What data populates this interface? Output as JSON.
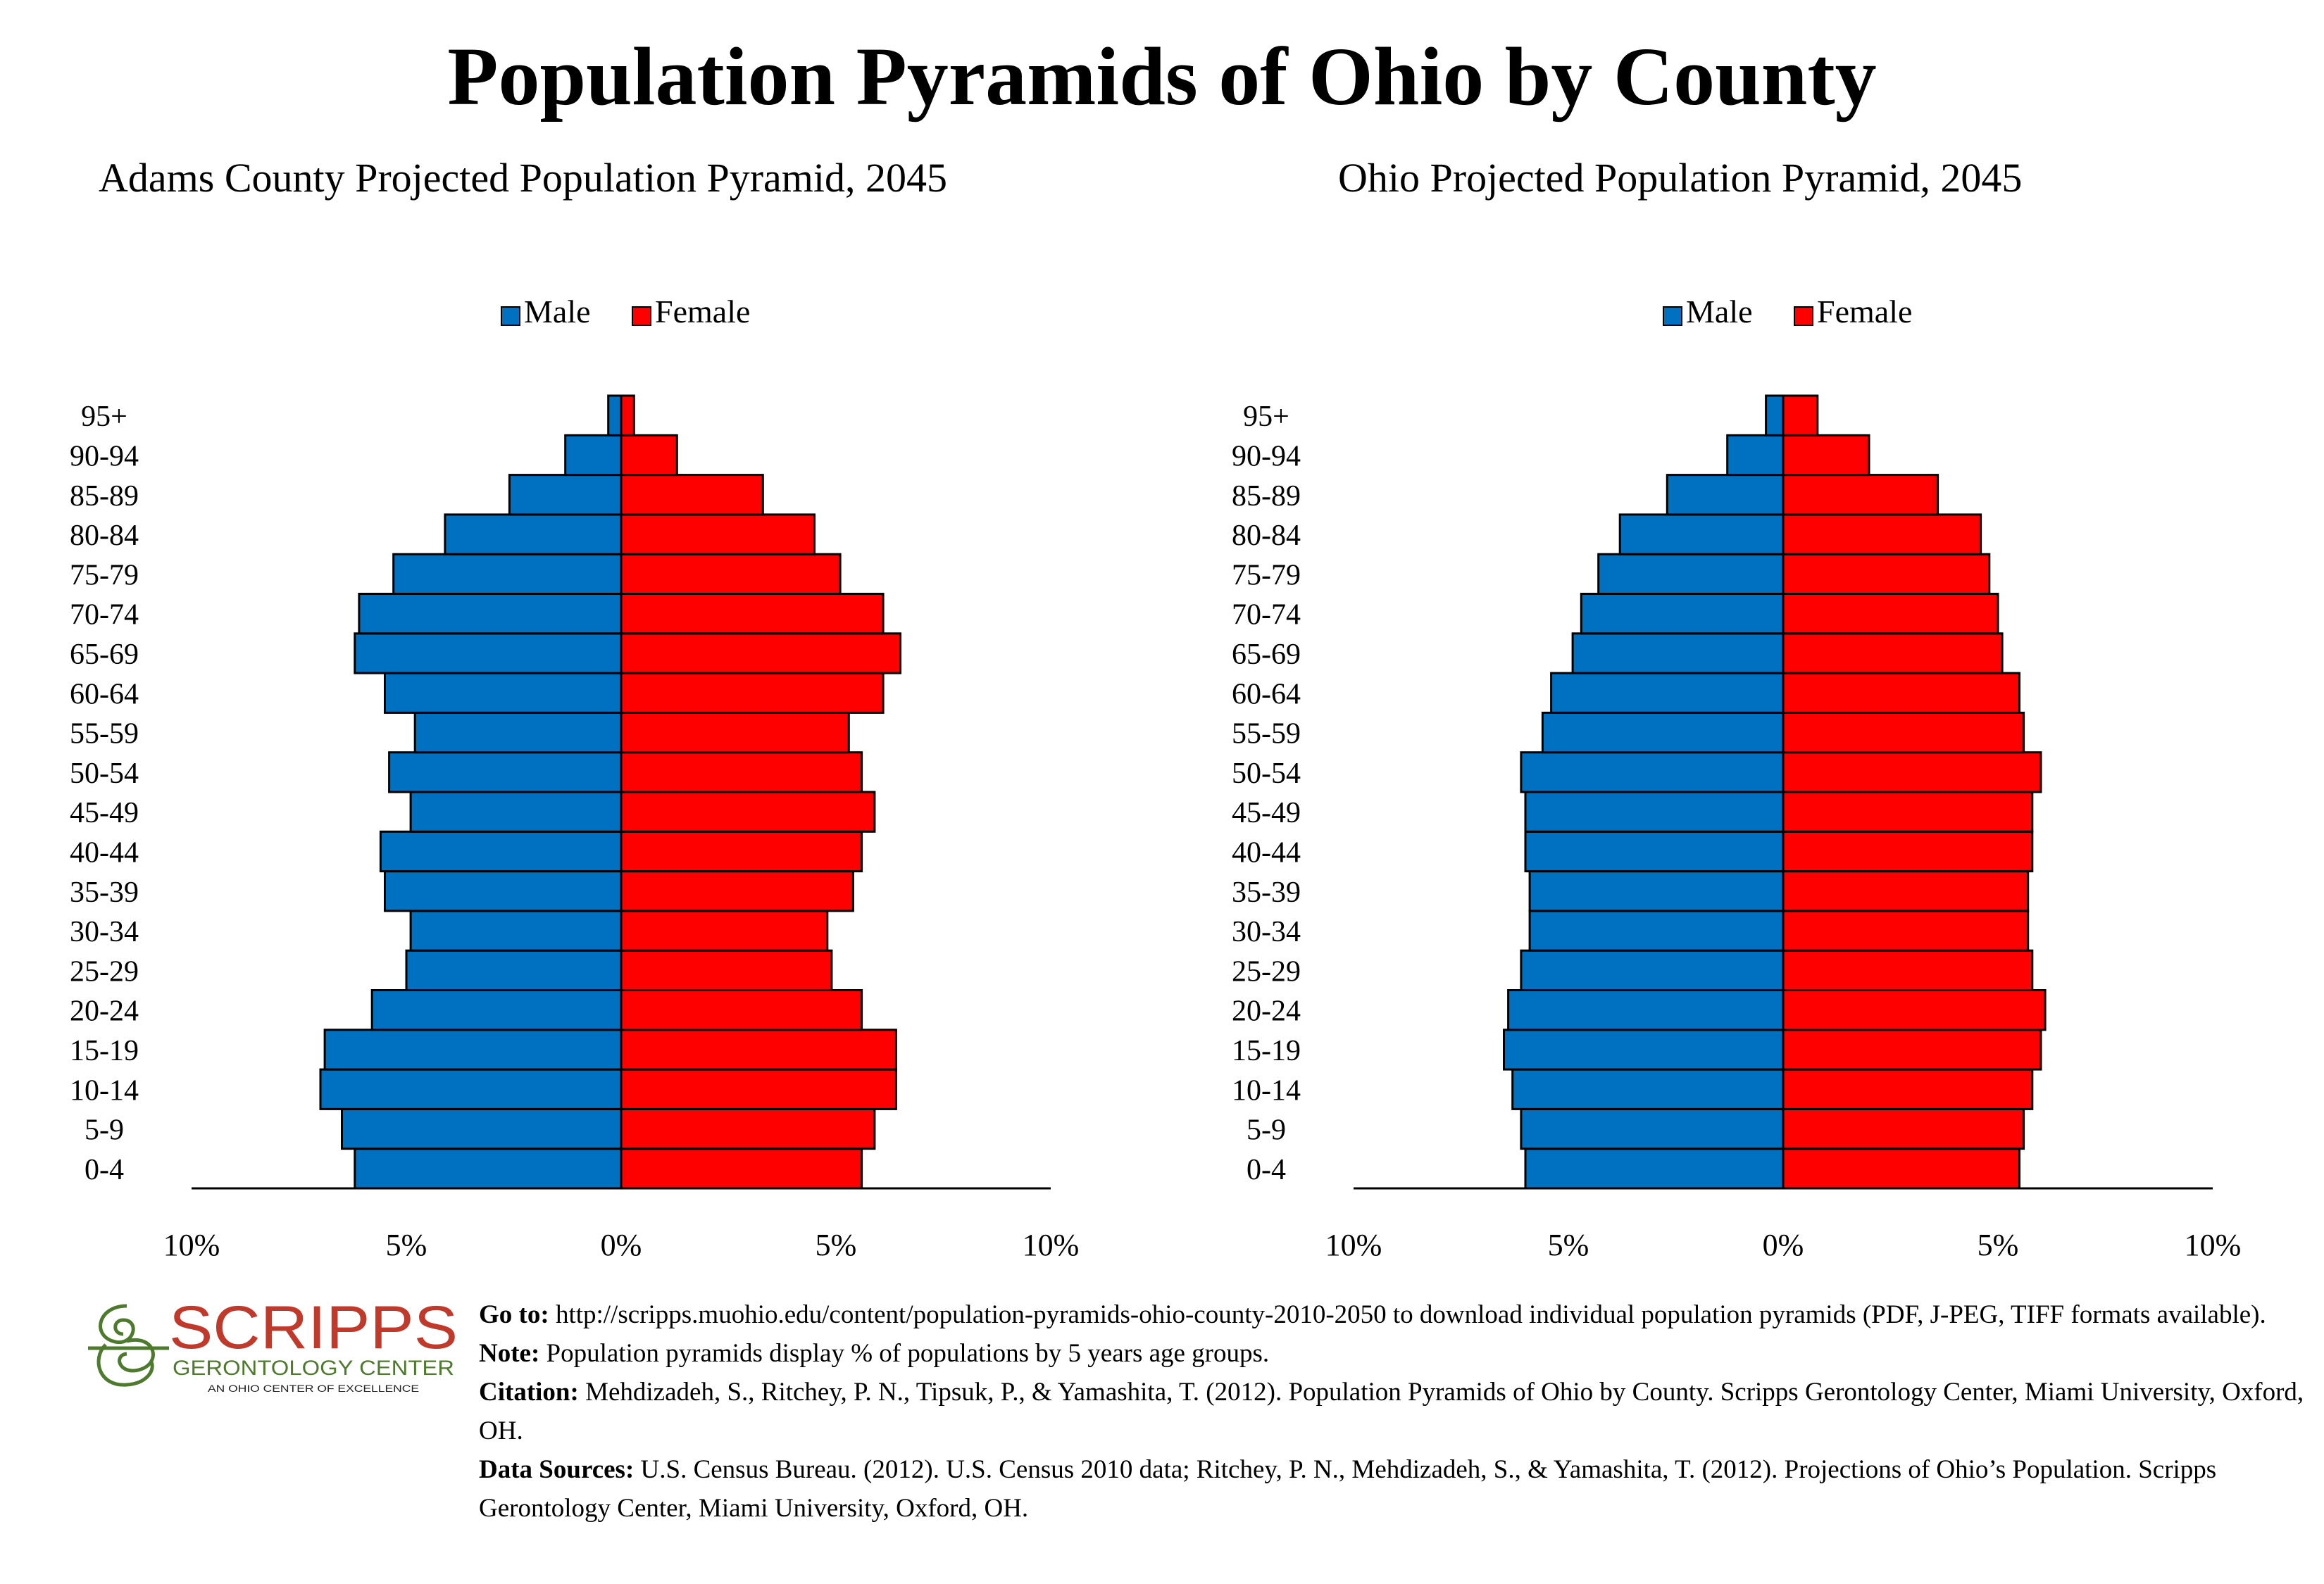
{
  "title": "Population Pyramids of Ohio by County",
  "legend": {
    "male": "Male",
    "female": "Female"
  },
  "colors": {
    "male": "#0070C0",
    "female": "#FF0000",
    "logo_red": "#C0392B",
    "logo_green": "#4E7A2E"
  },
  "chart_data": [
    {
      "type": "bar",
      "subtype": "population-pyramid",
      "title": "Adams County Projected Population Pyramid, 2045",
      "categories": [
        "0-4",
        "5-9",
        "10-14",
        "15-19",
        "20-24",
        "25-29",
        "30-34",
        "35-39",
        "40-44",
        "45-49",
        "50-54",
        "55-59",
        "60-64",
        "65-69",
        "70-74",
        "75-79",
        "80-84",
        "85-89",
        "90-94",
        "95+"
      ],
      "series": [
        {
          "name": "Male",
          "values": [
            6.2,
            6.5,
            7.0,
            6.9,
            5.8,
            5.0,
            4.9,
            5.5,
            5.6,
            4.9,
            5.4,
            4.8,
            5.5,
            6.2,
            6.1,
            5.3,
            4.1,
            2.6,
            1.3,
            0.3
          ]
        },
        {
          "name": "Female",
          "values": [
            5.6,
            5.9,
            6.4,
            6.4,
            5.6,
            4.9,
            4.8,
            5.4,
            5.6,
            5.9,
            5.6,
            5.3,
            6.1,
            6.5,
            6.1,
            5.1,
            4.5,
            3.3,
            1.3,
            0.3
          ]
        }
      ],
      "xlim": [
        -10,
        10
      ],
      "xticks": [
        "10%",
        "5%",
        "0%",
        "5%",
        "10%"
      ],
      "legend_position": "top-center"
    },
    {
      "type": "bar",
      "subtype": "population-pyramid",
      "title": "Ohio Projected Population Pyramid, 2045",
      "categories": [
        "0-4",
        "5-9",
        "10-14",
        "15-19",
        "20-24",
        "25-29",
        "30-34",
        "35-39",
        "40-44",
        "45-49",
        "50-54",
        "55-59",
        "60-64",
        "65-69",
        "70-74",
        "75-79",
        "80-84",
        "85-89",
        "90-94",
        "95+"
      ],
      "series": [
        {
          "name": "Male",
          "values": [
            6.0,
            6.1,
            6.3,
            6.5,
            6.4,
            6.1,
            5.9,
            5.9,
            6.0,
            6.0,
            6.1,
            5.6,
            5.4,
            4.9,
            4.7,
            4.3,
            3.8,
            2.7,
            1.3,
            0.4
          ]
        },
        {
          "name": "Female",
          "values": [
            5.5,
            5.6,
            5.8,
            6.0,
            6.1,
            5.8,
            5.7,
            5.7,
            5.8,
            5.8,
            6.0,
            5.6,
            5.5,
            5.1,
            5.0,
            4.8,
            4.6,
            3.6,
            2.0,
            0.8
          ]
        }
      ],
      "xlim": [
        -10,
        10
      ],
      "xticks": [
        "10%",
        "5%",
        "0%",
        "5%",
        "10%"
      ],
      "legend_position": "top-center"
    }
  ],
  "logo": {
    "name": "SCRIPPS",
    "subtitle": "GERONTOLOGY CENTER",
    "tagline": "AN OHIO CENTER OF EXCELLENCE"
  },
  "notes": {
    "goto_label": "Go to:",
    "goto_text": "http://scripps.muohio.edu/content/population-pyramids-ohio-county-2010-2050 to download individual population pyramids (PDF, J-PEG, TIFF formats available).",
    "note_label": "Note:",
    "note_text": "Population pyramids display % of populations by 5 years age groups.",
    "citation_label": "Citation:",
    "citation_text": "Mehdizadeh, S., Ritchey, P. N., Tipsuk, P., & Yamashita, T. (2012). Population Pyramids of Ohio by County. Scripps Gerontology Center, Miami University, Oxford, OH.",
    "sources_label": "Data Sources:",
    "sources_text": "U.S. Census Bureau. (2012). U.S. Census 2010 data; Ritchey, P. N., Mehdizadeh, S., & Yamashita, T. (2012). Projections of Ohio’s Population. Scripps Gerontology Center, Miami University, Oxford, OH."
  }
}
